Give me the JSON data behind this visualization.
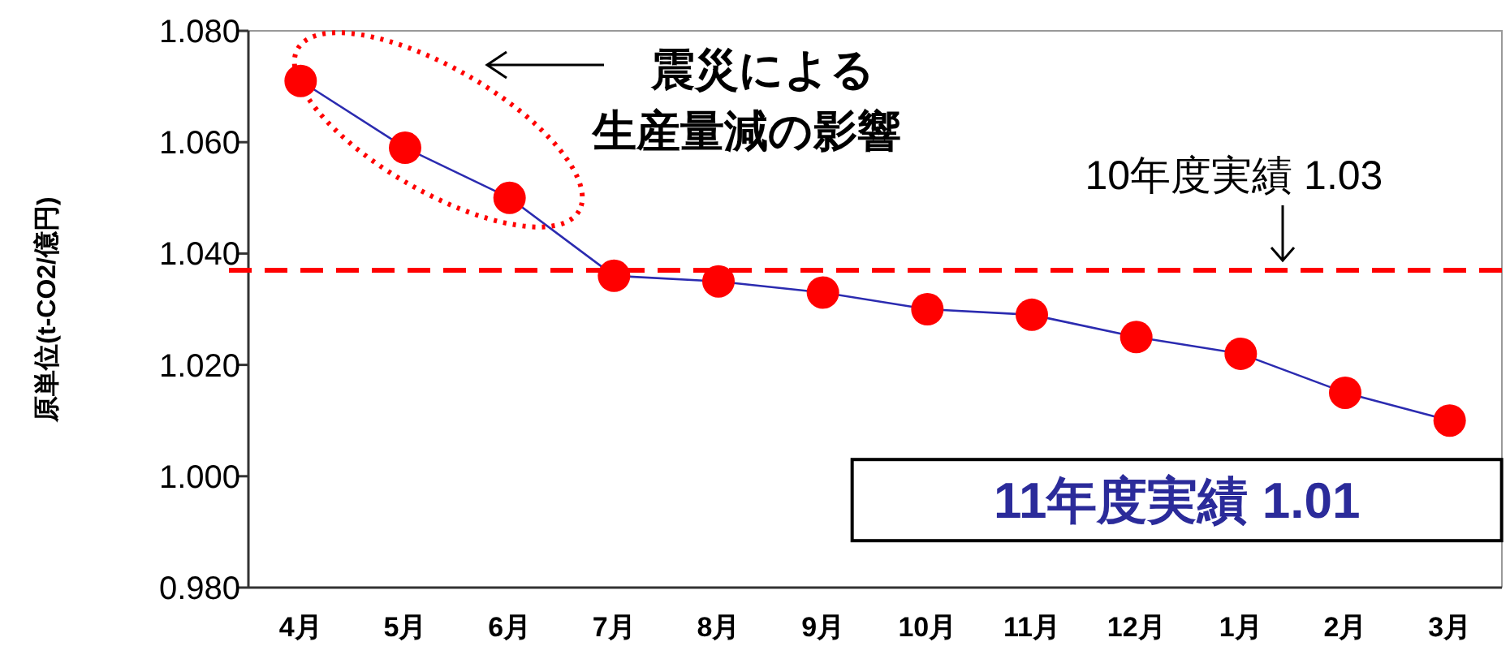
{
  "chart_data": {
    "type": "line",
    "ylabel": "原単位(t-CO2/億円)",
    "categories": [
      "4月",
      "5月",
      "6月",
      "7月",
      "8月",
      "9月",
      "10月",
      "11月",
      "12月",
      "1月",
      "2月",
      "3月"
    ],
    "series": [
      {
        "color": "#2b2bb0",
        "colors": [
          "#ff0000",
          "#ff0000",
          "#ff0000",
          "#ff0000",
          "#ff0000",
          "#ff0000",
          "#ff0000",
          "#ff0000",
          "#ff0000",
          "#ff0000",
          "#ff0000",
          "#ff0000"
        ],
        "values": [
          1.071,
          1.059,
          1.05,
          1.036,
          1.035,
          1.033,
          1.03,
          1.029,
          1.025,
          1.022,
          1.015,
          1.01
        ]
      }
    ],
    "ylim": [
      0.98,
      1.08
    ],
    "yticks": [
      {
        "value": 0.98,
        "label": "0.980"
      },
      {
        "value": 1.0,
        "label": "1.000"
      },
      {
        "value": 1.02,
        "label": "1.020"
      },
      {
        "value": 1.04,
        "label": "1.040"
      },
      {
        "value": 1.06,
        "label": "1.060"
      },
      {
        "value": 1.08,
        "label": "1.080"
      }
    ],
    "ref_lines": [
      {
        "axis": "y",
        "value": 1.037,
        "label": "10年度実績 1.03",
        "color": "#ff0000",
        "line_style": "dashed"
      }
    ],
    "annotations": [
      "震災による",
      "生産量減の影響",
      {
        "text": "11年度実績 1.01",
        "x": "3月",
        "y": 1.01
      }
    ],
    "marker": "circle",
    "line_style": "solid",
    "grid": false
  }
}
